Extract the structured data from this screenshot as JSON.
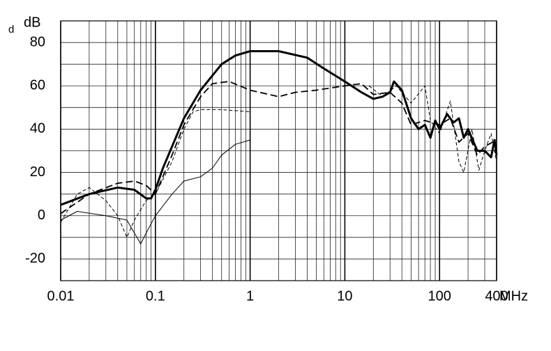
{
  "chart_data": {
    "type": "line",
    "corner_label": "d",
    "y_label": "dB",
    "x_label": "MHz",
    "xlim": [
      0.01,
      400
    ],
    "ylim": [
      -30,
      90
    ],
    "xscale": "log",
    "grid": true,
    "xticks": [
      0.01,
      0.1,
      1,
      10,
      100,
      400
    ],
    "yticks": [
      -20,
      0,
      20,
      40,
      60,
      80
    ],
    "series": [
      {
        "color": "#000000",
        "style": "solid",
        "width": 3,
        "x": [
          0.01,
          0.02,
          0.04,
          0.06,
          0.08,
          0.09,
          0.1,
          0.12,
          0.15,
          0.2,
          0.3,
          0.5,
          0.7,
          1,
          2,
          4,
          6,
          10,
          15,
          20,
          25,
          30,
          33,
          40,
          50,
          60,
          70,
          80,
          90,
          100,
          120,
          140,
          160,
          180,
          200,
          250,
          300,
          350,
          380,
          400
        ],
        "values": [
          5,
          10,
          13,
          12,
          8,
          8,
          12,
          22,
          32,
          45,
          58,
          70,
          74,
          76,
          76,
          73,
          68,
          62,
          57,
          54,
          55,
          57,
          62,
          58,
          45,
          40,
          42,
          36,
          44,
          40,
          47,
          43,
          45,
          36,
          40,
          30,
          30,
          27,
          35,
          28
        ]
      },
      {
        "color": "#000000",
        "style": "dash",
        "width": 1.8,
        "x": [
          0.01,
          0.02,
          0.04,
          0.06,
          0.08,
          0.1,
          0.15,
          0.2,
          0.3,
          0.4,
          0.6,
          1,
          2,
          3,
          5,
          10,
          15,
          20,
          30,
          40,
          50,
          70,
          100,
          130,
          160,
          200,
          250,
          300,
          400
        ],
        "values": [
          1,
          10,
          15,
          16,
          14,
          10,
          28,
          42,
          55,
          61,
          62,
          58,
          55,
          57,
          58,
          60,
          61,
          56,
          57,
          52,
          42,
          44,
          42,
          45,
          34,
          38,
          28,
          32,
          35
        ]
      },
      {
        "color": "#000000",
        "style": "dash-thin",
        "width": 1,
        "x": [
          0.01,
          0.015,
          0.02,
          0.03,
          0.04,
          0.05,
          0.06,
          0.08,
          0.1,
          0.15,
          0.2,
          0.25,
          0.3,
          0.5,
          1,
          5,
          18,
          25,
          35,
          50,
          70,
          80,
          100,
          130,
          160,
          180,
          220,
          260,
          300,
          350,
          400
        ],
        "values": [
          -3,
          10,
          13,
          7,
          0,
          -10,
          -2,
          7,
          10,
          25,
          40,
          48,
          49,
          49,
          48,
          null,
          60,
          55,
          60,
          52,
          60,
          44,
          38,
          53,
          25,
          20,
          40,
          21,
          30,
          38,
          25
        ]
      },
      {
        "color": "#000000",
        "style": "solid",
        "width": 1,
        "x": [
          0.01,
          0.015,
          0.03,
          0.05,
          0.06,
          0.07,
          0.08,
          0.1,
          0.15,
          0.2,
          0.3,
          0.4,
          0.5,
          0.7,
          1
        ],
        "values": [
          -2,
          2,
          0,
          -2,
          -8,
          -13,
          -8,
          0,
          10,
          16,
          18,
          22,
          28,
          33,
          35
        ]
      }
    ]
  }
}
